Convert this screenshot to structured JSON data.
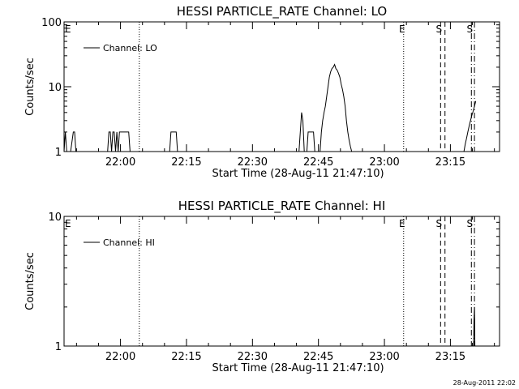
{
  "colors": {
    "background": "#ffffff",
    "foreground": "#000000"
  },
  "footer": {
    "timestamp": "28-Aug-2011 22:02"
  },
  "chart_data": [
    {
      "type": "line",
      "title": "HESSI PARTICLE_RATE Channel: LO",
      "xlabel": "Start Time (28-Aug-11 21:47:10)",
      "ylabel": "Counts/sec",
      "xlim_minutes": [
        0,
        99
      ],
      "ylim": [
        1,
        100
      ],
      "yscale": "log",
      "x_ticks": [
        {
          "label": "22:00",
          "t": 12.83
        },
        {
          "label": "22:15",
          "t": 27.83
        },
        {
          "label": "22:30",
          "t": 42.83
        },
        {
          "label": "22:45",
          "t": 57.83
        },
        {
          "label": "23:00",
          "t": 72.83
        },
        {
          "label": "23:15",
          "t": 87.83
        }
      ],
      "y_ticks": [
        {
          "label": "1",
          "v": 1
        },
        {
          "label": "10",
          "v": 10
        },
        {
          "label": "100",
          "v": 100
        }
      ],
      "legend": [
        {
          "label": "Channel: LO",
          "position": "top-left"
        }
      ],
      "markers": [
        {
          "label": "E",
          "t": 0,
          "style": "none"
        },
        {
          "label": "",
          "t": 17.1,
          "style": "dotted"
        },
        {
          "label": "E",
          "t": 77.2,
          "style": "dotted"
        },
        {
          "label": "S",
          "t": 85.6,
          "style": "dashed"
        },
        {
          "label": "",
          "t": 86.6,
          "style": "dashed"
        },
        {
          "label": "S",
          "t": 92.6,
          "style": "dashdot"
        },
        {
          "label": "",
          "t": 93.3,
          "style": "dashdot"
        }
      ],
      "series": [
        {
          "x": [
            0,
            0.3,
            0.6,
            0.9,
            1.5,
            2.1,
            2.4,
            2.7,
            3.0,
            9.9,
            10.2,
            10.5,
            10.8,
            11.1,
            11.4,
            11.7,
            12.0,
            12.3,
            12.6,
            12.9,
            14.7,
            15.0,
            15.3,
            15.9,
            24.0,
            24.3,
            24.6,
            25.5,
            25.8,
            26.1,
            53.4,
            53.7,
            54.0,
            54.3,
            54.6,
            54.9,
            55.2,
            55.5,
            55.8,
            56.7,
            57.0,
            57.3,
            58.2,
            58.5,
            58.8,
            59.1,
            59.4,
            59.7,
            60.0,
            60.3,
            60.6,
            60.9,
            61.2,
            61.5,
            61.8,
            62.1,
            62.4,
            62.7,
            63.0,
            63.3,
            63.6,
            63.9,
            64.2,
            64.5,
            64.8,
            65.1,
            65.4,
            65.7,
            66.0,
            66.3,
            66.6,
            66.9,
            67.2,
            67.5,
            90.9,
            91.2,
            91.5,
            91.8,
            92.1,
            92.4,
            92.7,
            93.0,
            93.3,
            93.6
          ],
          "y": [
            1,
            2,
            1,
            1,
            1,
            2,
            2,
            1,
            1,
            1,
            2,
            2,
            1,
            2,
            2,
            1,
            2,
            1,
            2,
            2,
            2,
            1,
            1,
            1,
            1,
            2,
            2,
            2,
            1,
            1,
            1,
            2,
            4,
            3,
            1,
            1,
            1,
            2,
            2,
            2,
            1,
            1,
            1,
            2,
            3,
            4,
            5,
            7,
            10,
            14,
            17,
            19,
            20,
            22,
            19,
            18,
            16,
            14,
            11,
            9,
            7,
            5,
            3,
            2,
            1.5,
            1.2,
            1,
            1,
            1,
            1,
            1,
            1,
            1,
            1,
            1,
            1.3,
            1.6,
            2,
            2.5,
            3,
            3.6,
            4.2,
            5,
            6
          ]
        }
      ]
    },
    {
      "type": "line",
      "title": "HESSI PARTICLE_RATE Channel: HI",
      "xlabel": "Start Time (28-Aug-11 21:47:10)",
      "ylabel": "Counts/sec",
      "xlim_minutes": [
        0,
        99
      ],
      "ylim": [
        1,
        10
      ],
      "yscale": "log",
      "x_ticks": [
        {
          "label": "22:00",
          "t": 12.83
        },
        {
          "label": "22:15",
          "t": 27.83
        },
        {
          "label": "22:30",
          "t": 42.83
        },
        {
          "label": "22:45",
          "t": 57.83
        },
        {
          "label": "23:00",
          "t": 72.83
        },
        {
          "label": "23:15",
          "t": 87.83
        }
      ],
      "y_ticks": [
        {
          "label": "1",
          "v": 1
        },
        {
          "label": "10",
          "v": 10
        }
      ],
      "legend": [
        {
          "label": "Channel: HI",
          "position": "top-left"
        }
      ],
      "markers": [
        {
          "label": "E",
          "t": 0,
          "style": "none"
        },
        {
          "label": "",
          "t": 17.1,
          "style": "dotted"
        },
        {
          "label": "E",
          "t": 77.2,
          "style": "dotted"
        },
        {
          "label": "S",
          "t": 85.6,
          "style": "dashed"
        },
        {
          "label": "",
          "t": 86.6,
          "style": "dashed"
        },
        {
          "label": "S",
          "t": 92.6,
          "style": "dashdot"
        },
        {
          "label": "",
          "t": 93.3,
          "style": "dashdot"
        }
      ],
      "series": [
        {
          "x": [
            93.1,
            93.2,
            93.3,
            93.4
          ],
          "y": [
            1,
            1.6,
            2,
            1
          ]
        }
      ]
    }
  ]
}
